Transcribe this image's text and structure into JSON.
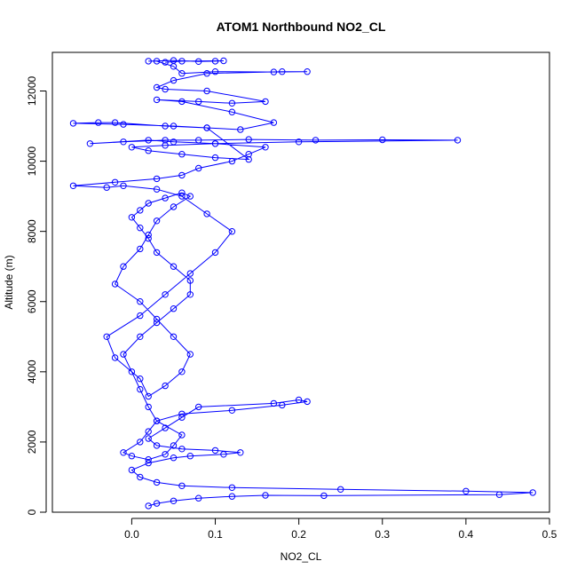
{
  "chart_data": {
    "type": "scatter",
    "title": "ATOM1 Northbound NO2_CL",
    "xlabel": "NO2_CL",
    "ylabel": "Altitude (m)",
    "xlim": [
      -0.095,
      0.5
    ],
    "ylim": [
      0,
      13100
    ],
    "x_ticks": [
      0.0,
      0.1,
      0.2,
      0.3,
      0.4,
      0.5
    ],
    "x_tick_labels": [
      "0.0",
      "0.1",
      "0.2",
      "0.3",
      "0.4",
      "0.5"
    ],
    "y_ticks": [
      0,
      2000,
      4000,
      6000,
      8000,
      10000,
      12000
    ],
    "y_tick_labels": [
      "0",
      "2000",
      "4000",
      "6000",
      "8000",
      "10000",
      "12000"
    ],
    "marker": "open-circle",
    "connected": true,
    "grid": false,
    "legend": "none",
    "color": "#0000ff",
    "series": [
      {
        "x": [
          0.02,
          0.03,
          0.05,
          0.08,
          0.12,
          0.16,
          0.23,
          0.44,
          0.48,
          0.4,
          0.25,
          0.12,
          0.06,
          0.03,
          0.01,
          0.0,
          0.02,
          0.05,
          0.07,
          0.11,
          0.13,
          0.1,
          0.06,
          0.03,
          0.02,
          0.04,
          0.06,
          0.08,
          0.17,
          0.2,
          0.21,
          0.18,
          0.12,
          0.06,
          0.03,
          0.02,
          0.01,
          -0.01,
          0.0,
          0.02,
          0.04,
          0.05,
          0.06,
          0.03,
          0.02,
          0.01,
          0.0,
          -0.01,
          0.01,
          0.03,
          0.05,
          0.07,
          0.07,
          0.05,
          0.03,
          0.02,
          0.01,
          0.0,
          0.01,
          0.02,
          0.04,
          0.06,
          0.07,
          0.05,
          0.03,
          0.02,
          0.01,
          -0.01,
          -0.02,
          0.01,
          0.03,
          0.05,
          0.07,
          0.06,
          0.04,
          0.02,
          0.01,
          -0.02,
          -0.03,
          0.01,
          0.04,
          0.07,
          0.1,
          0.12,
          0.09,
          0.06,
          0.03,
          -0.01,
          -0.03,
          -0.07,
          -0.02,
          0.03,
          0.06,
          0.08,
          0.12,
          0.14,
          0.16,
          0.1,
          0.05,
          0.02,
          -0.05,
          -0.01,
          0.04,
          0.08,
          0.14,
          0.22,
          0.3,
          0.39,
          0.2,
          0.1,
          0.04,
          0.0,
          0.02,
          0.06,
          0.1,
          0.14,
          0.09,
          0.04,
          -0.02,
          -0.04,
          -0.07,
          -0.01,
          0.05,
          0.09,
          0.13,
          0.17,
          0.12,
          0.06,
          0.03,
          0.08,
          0.12,
          0.16,
          0.09,
          0.04,
          0.03,
          0.05,
          0.09,
          0.18,
          0.21,
          0.17,
          0.1,
          0.06,
          0.05,
          0.03,
          0.02,
          0.05,
          0.08,
          0.1,
          0.11,
          0.06,
          0.04
        ],
        "y": [
          180,
          250,
          320,
          400,
          450,
          480,
          470,
          500,
          560,
          600,
          650,
          700,
          750,
          850,
          1000,
          1200,
          1400,
          1550,
          1600,
          1650,
          1700,
          1760,
          1800,
          1900,
          2100,
          2400,
          2700,
          3000,
          3100,
          3200,
          3150,
          3050,
          2900,
          2800,
          2600,
          2300,
          2000,
          1700,
          1600,
          1500,
          1650,
          1900,
          2200,
          2600,
          3000,
          3500,
          4000,
          4500,
          5000,
          5400,
          5800,
          6200,
          6600,
          7000,
          7400,
          7800,
          8100,
          8400,
          8600,
          8800,
          8950,
          9100,
          9000,
          8700,
          8300,
          7900,
          7500,
          7000,
          6500,
          6000,
          5500,
          5000,
          4500,
          4000,
          3600,
          3300,
          3800,
          4400,
          5000,
          5600,
          6200,
          6800,
          7400,
          8000,
          8500,
          9000,
          9200,
          9300,
          9250,
          9300,
          9400,
          9500,
          9600,
          9800,
          10000,
          10200,
          10400,
          10500,
          10550,
          10600,
          10500,
          10550,
          10600,
          10600,
          10620,
          10600,
          10610,
          10600,
          10550,
          10500,
          10450,
          10400,
          10300,
          10200,
          10100,
          10050,
          10950,
          11000,
          11100,
          11100,
          11080,
          11050,
          11000,
          10950,
          10900,
          11100,
          11400,
          11700,
          11750,
          11700,
          11650,
          11700,
          12000,
          12050,
          12100,
          12300,
          12500,
          12550,
          12550,
          12540,
          12550,
          12500,
          12700,
          12850,
          12850,
          12870,
          12840,
          12850,
          12860,
          12850,
          12820
        ]
      }
    ]
  }
}
